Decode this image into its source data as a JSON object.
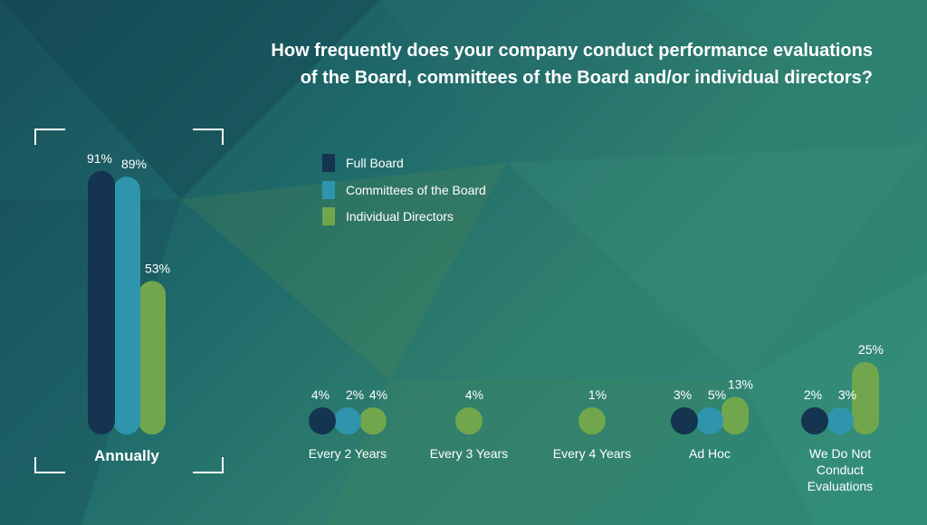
{
  "title_lines": [
    "How frequently does your company conduct performance evaluations",
    "of the Board, committees of the Board and/or individual directors?"
  ],
  "colors": {
    "full_board": "#14344f",
    "committees": "#2e95ad",
    "individual_directors": "#72a64c",
    "text": "#ffffff"
  },
  "chart_data": {
    "type": "bar",
    "title": "How frequently does your company conduct performance evaluations of the Board, committees of the Board and/or individual directors?",
    "categories": [
      "Annually",
      "Every 2 Years",
      "Every 3 Years",
      "Every 4 Years",
      "Ad Hoc",
      "We Do Not Conduct Evaluations"
    ],
    "category_label_lines": [
      [
        "Annually"
      ],
      [
        "Every 2 Years"
      ],
      [
        "Every 3 Years"
      ],
      [
        "Every 4 Years"
      ],
      [
        "Ad Hoc"
      ],
      [
        "We Do Not",
        "Conduct",
        "Evaluations"
      ]
    ],
    "series": [
      {
        "name": "Full Board",
        "color": "#14344f",
        "values": [
          91,
          4,
          null,
          null,
          3,
          2
        ]
      },
      {
        "name": "Committees of the Board",
        "color": "#2e95ad",
        "values": [
          89,
          2,
          null,
          null,
          5,
          3
        ]
      },
      {
        "name": "Individual Directors",
        "color": "#72a64c",
        "values": [
          53,
          4,
          4,
          1,
          13,
          25
        ]
      }
    ],
    "value_suffix": "%",
    "highlight_category": "Annually",
    "legend_position": "top-center",
    "grid": false
  }
}
